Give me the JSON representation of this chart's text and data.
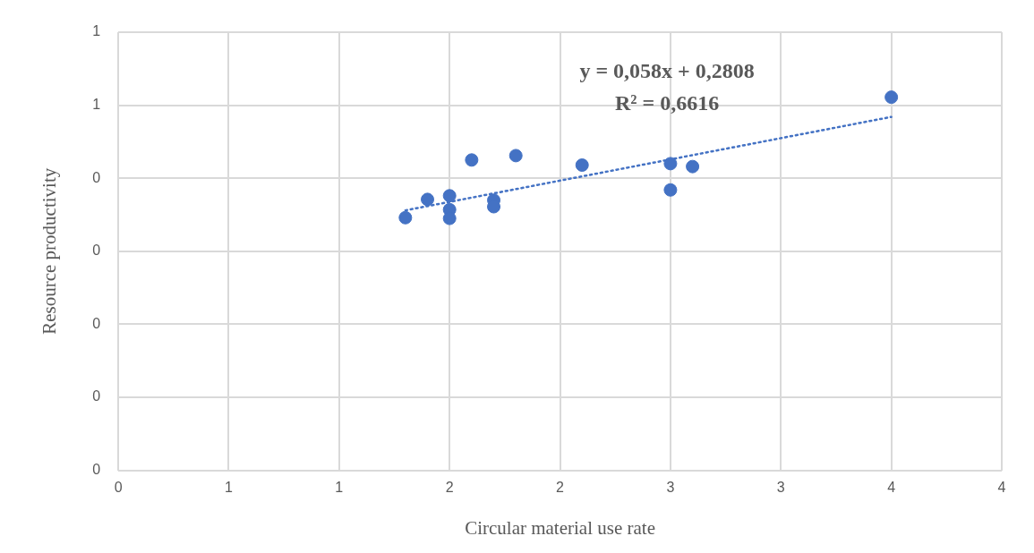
{
  "chart_data": {
    "type": "scatter",
    "xlabel": "Circular material use rate",
    "ylabel": "Resource productivity",
    "annotations": [
      "y = 0,058x + 0,2808",
      "R² = 0,6616"
    ],
    "xlim": [
      0,
      4
    ],
    "xticks": [
      {
        "value": 0,
        "label": "0"
      },
      {
        "value": 0.5,
        "label": "1"
      },
      {
        "value": 1,
        "label": "1"
      },
      {
        "value": 1.5,
        "label": "2"
      },
      {
        "value": 2,
        "label": "2"
      },
      {
        "value": 2.5,
        "label": "3"
      },
      {
        "value": 3,
        "label": "3"
      },
      {
        "value": 3.5,
        "label": "4"
      },
      {
        "value": 4,
        "label": "4"
      }
    ],
    "ylim": [
      0,
      0.6
    ],
    "yticks": [
      {
        "value": 0,
        "label": "0"
      },
      {
        "value": 0.1,
        "label": "0"
      },
      {
        "value": 0.2,
        "label": "0"
      },
      {
        "value": 0.3,
        "label": "0"
      },
      {
        "value": 0.4,
        "label": "0"
      },
      {
        "value": 0.5,
        "label": "1"
      },
      {
        "value": 0.6,
        "label": "1"
      }
    ],
    "grid": true,
    "legend": false,
    "series": [
      {
        "type": "scatter",
        "color": "#4472c4",
        "marker": "circle",
        "x": [
          1.3,
          1.4,
          1.5,
          1.5,
          1.5,
          1.6,
          1.7,
          1.7,
          1.8,
          2.1,
          2.5,
          2.5,
          2.6,
          3.5
        ],
        "values": [
          0.346,
          0.371,
          0.376,
          0.357,
          0.345,
          0.425,
          0.37,
          0.361,
          0.431,
          0.418,
          0.42,
          0.384,
          0.416,
          0.511
        ]
      },
      {
        "type": "line",
        "color": "#4472c4",
        "line_style": "dotted",
        "marker": "none",
        "x": [
          1.3,
          3.5
        ],
        "values": [
          0.356,
          0.484
        ]
      }
    ]
  }
}
